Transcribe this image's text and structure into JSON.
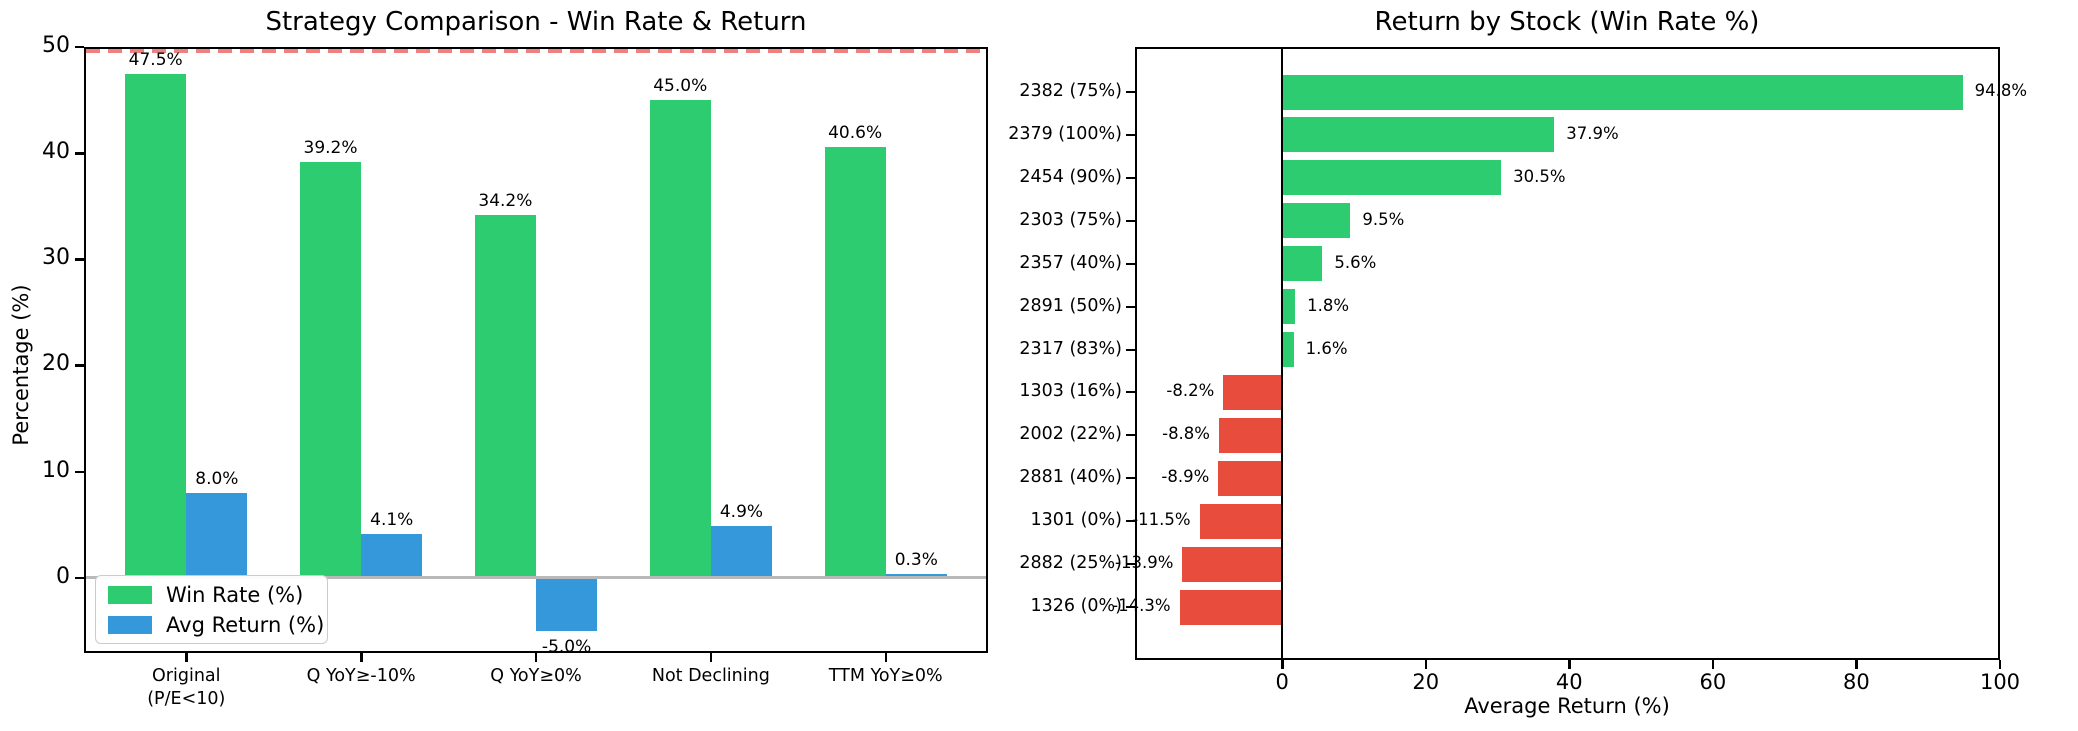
{
  "figure": {
    "background": "#ffffff"
  },
  "colors": {
    "green": "#2ecc71",
    "blue": "#3498db",
    "red": "#e74c3c",
    "target_line": "#f08080",
    "zero_line_gray": "#b9b9b9",
    "spine": "#000000",
    "legend_border": "#cccccc"
  },
  "chart_data": [
    {
      "type": "bar",
      "title": "Strategy Comparison - Win Rate & Return",
      "ylabel": "Percentage (%)",
      "categories": [
        "Original\n(P/E<10)",
        "Q YoY≥-10%",
        "Q YoY≥0%",
        "Not Declining",
        "TTM YoY≥0%"
      ],
      "series": [
        {
          "name": "Win Rate (%)",
          "color_key": "green",
          "values": [
            47.5,
            39.2,
            34.2,
            45.0,
            40.6
          ],
          "labels": [
            "47.5%",
            "39.2%",
            "34.2%",
            "45.0%",
            "40.6%"
          ]
        },
        {
          "name": "Avg Return (%)",
          "color_key": "blue",
          "values": [
            8.0,
            4.1,
            -5.0,
            4.9,
            0.3
          ],
          "labels": [
            "8.0%",
            "4.1%",
            "-5.0%",
            "4.9%",
            "0.3%"
          ]
        }
      ],
      "yticks": [
        0,
        10,
        20,
        30,
        40,
        50
      ],
      "ylim": [
        -7.1,
        50
      ],
      "reference_line": {
        "y": 50,
        "style": "dashed",
        "color_key": "target_line"
      },
      "zero_line": {
        "y": 0,
        "color_key": "zero_line_gray"
      },
      "legend": {
        "entries": [
          "Win Rate (%)",
          "Avg Return (%)"
        ],
        "position": "lower left"
      },
      "grid": false
    },
    {
      "type": "barh",
      "title": "Return by Stock (Win Rate %)",
      "xlabel": "Average Return (%)",
      "categories": [
        "2382 (75%)",
        "2379 (100%)",
        "2454 (90%)",
        "2303 (75%)",
        "2357 (40%)",
        "2891 (50%)",
        "2317 (83%)",
        "1303 (16%)",
        "2002 (22%)",
        "2881 (40%)",
        "1301 (0%)",
        "2882 (25%)",
        "1326 (0%)"
      ],
      "values": [
        94.8,
        37.9,
        30.5,
        9.5,
        5.6,
        1.8,
        1.6,
        -8.2,
        -8.8,
        -8.9,
        -11.5,
        -13.9,
        -14.3
      ],
      "labels": [
        "94.8%",
        "37.9%",
        "30.5%",
        "9.5%",
        "5.6%",
        "1.8%",
        "1.6%",
        "-8.2%",
        "-8.8%",
        "-8.9%",
        "-11.5%",
        "-13.9%",
        "-14.3%"
      ],
      "xticks": [
        0,
        20,
        40,
        60,
        80,
        100
      ],
      "xlim": [
        -20.5,
        100
      ],
      "positive_color_key": "green",
      "negative_color_key": "red",
      "zero_line": {
        "x": 0,
        "color_key": "spine"
      },
      "grid": false
    }
  ]
}
